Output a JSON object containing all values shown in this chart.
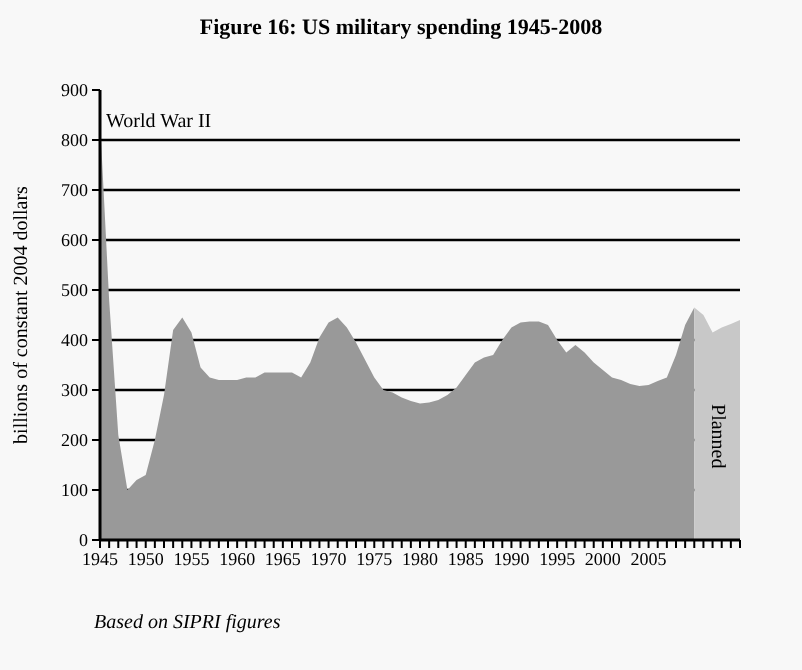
{
  "chart_data": {
    "type": "area",
    "title": "Figure 16: US military spending 1945-2008",
    "ylabel": "billions of constant 2004 dollars",
    "series": [
      {
        "color": "#999999",
        "x": [
          1945,
          1946,
          1947,
          1948,
          1949,
          1950,
          1951,
          1952,
          1953,
          1954,
          1955,
          1956,
          1957,
          1958,
          1959,
          1960,
          1961,
          1962,
          1963,
          1964,
          1965,
          1966,
          1967,
          1968,
          1969,
          1970,
          1971,
          1972,
          1973,
          1974,
          1975,
          1976,
          1977,
          1978,
          1979,
          1980,
          1981,
          1982,
          1983,
          1984,
          1985,
          1986,
          1987,
          1988,
          1989,
          1990,
          1991,
          1992,
          1993,
          1994,
          1995,
          1996,
          1997,
          1998,
          1999,
          2000,
          2001,
          2002,
          2003,
          2004,
          2005,
          2006,
          2007,
          2008,
          2009,
          2010
        ],
        "values": [
          840,
          480,
          210,
          100,
          120,
          130,
          200,
          290,
          420,
          445,
          415,
          345,
          325,
          320,
          320,
          320,
          325,
          325,
          335,
          335,
          335,
          335,
          325,
          355,
          405,
          435,
          445,
          425,
          395,
          360,
          325,
          300,
          295,
          285,
          278,
          273,
          275,
          280,
          290,
          305,
          330,
          355,
          365,
          370,
          400,
          425,
          435,
          437,
          437,
          430,
          400,
          375,
          390,
          375,
          355,
          340,
          325,
          320,
          312,
          308,
          310,
          318,
          325,
          370,
          430,
          465
        ]
      },
      {
        "name": "Planned",
        "color": "#c8c8c8",
        "x": [
          2010,
          2011,
          2012,
          2013,
          2014,
          2015
        ],
        "values": [
          465,
          450,
          415,
          425,
          432,
          440
        ]
      }
    ],
    "xlim": [
      1945,
      2015
    ],
    "xticks": [
      1945,
      {
        "value": 1946,
        "label": null
      },
      {
        "value": 1947,
        "label": null
      },
      {
        "value": 1948,
        "label": null
      },
      {
        "value": 1949,
        "label": null
      },
      1950,
      {
        "value": 1951,
        "label": null
      },
      {
        "value": 1952,
        "label": null
      },
      {
        "value": 1953,
        "label": null
      },
      {
        "value": 1954,
        "label": null
      },
      1955,
      {
        "value": 1956,
        "label": null
      },
      {
        "value": 1957,
        "label": null
      },
      {
        "value": 1958,
        "label": null
      },
      {
        "value": 1959,
        "label": null
      },
      1960,
      {
        "value": 1961,
        "label": null
      },
      {
        "value": 1962,
        "label": null
      },
      {
        "value": 1963,
        "label": null
      },
      {
        "value": 1964,
        "label": null
      },
      1965,
      {
        "value": 1966,
        "label": null
      },
      {
        "value": 1967,
        "label": null
      },
      {
        "value": 1968,
        "label": null
      },
      {
        "value": 1969,
        "label": null
      },
      1970,
      {
        "value": 1971,
        "label": null
      },
      {
        "value": 1972,
        "label": null
      },
      {
        "value": 1973,
        "label": null
      },
      {
        "value": 1974,
        "label": null
      },
      1975,
      {
        "value": 1976,
        "label": null
      },
      {
        "value": 1977,
        "label": null
      },
      {
        "value": 1978,
        "label": null
      },
      {
        "value": 1979,
        "label": null
      },
      1980,
      {
        "value": 1981,
        "label": null
      },
      {
        "value": 1982,
        "label": null
      },
      {
        "value": 1983,
        "label": null
      },
      {
        "value": 1984,
        "label": null
      },
      1985,
      {
        "value": 1986,
        "label": null
      },
      {
        "value": 1987,
        "label": null
      },
      {
        "value": 1988,
        "label": null
      },
      {
        "value": 1989,
        "label": null
      },
      1990,
      {
        "value": 1991,
        "label": null
      },
      {
        "value": 1992,
        "label": null
      },
      {
        "value": 1993,
        "label": null
      },
      {
        "value": 1994,
        "label": null
      },
      1995,
      {
        "value": 1996,
        "label": null
      },
      {
        "value": 1997,
        "label": null
      },
      {
        "value": 1998,
        "label": null
      },
      {
        "value": 1999,
        "label": null
      },
      2000,
      {
        "value": 2001,
        "label": null
      },
      {
        "value": 2002,
        "label": null
      },
      {
        "value": 2003,
        "label": null
      },
      {
        "value": 2004,
        "label": null
      },
      2005,
      {
        "value": 2006,
        "label": null
      },
      {
        "value": 2007,
        "label": null
      },
      {
        "value": 2008,
        "label": null
      },
      {
        "value": 2009,
        "label": null
      },
      {
        "value": 2010,
        "label": null
      },
      {
        "value": 2011,
        "label": null
      },
      {
        "value": 2012,
        "label": null
      },
      {
        "value": 2013,
        "label": null
      },
      {
        "value": 2014,
        "label": null
      },
      {
        "value": 2015,
        "label": null
      }
    ],
    "ylim": [
      0,
      900
    ],
    "yticks": [
      0,
      100,
      200,
      300,
      400,
      500,
      600,
      700,
      800,
      900
    ],
    "grid": "y",
    "legend": false,
    "annotations": [
      {
        "text": "World War II",
        "x": 1945,
        "y": 840
      },
      "Based on SIPRI figures"
    ]
  }
}
